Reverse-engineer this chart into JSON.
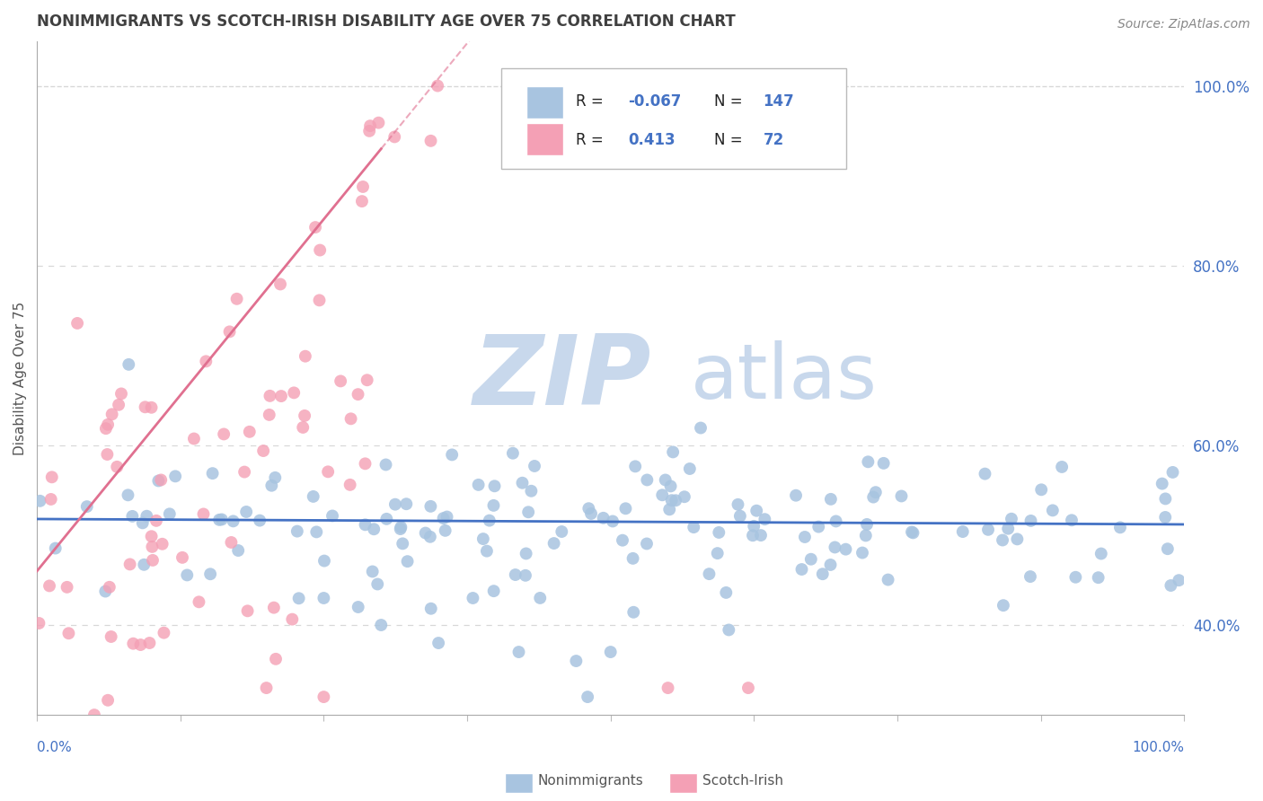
{
  "title": "NONIMMIGRANTS VS SCOTCH-IRISH DISABILITY AGE OVER 75 CORRELATION CHART",
  "source_text": "Source: ZipAtlas.com",
  "ylabel": "Disability Age Over 75",
  "nonimmigrant_R": -0.067,
  "nonimmigrant_N": 147,
  "scotchirish_R": 0.413,
  "scotchirish_N": 72,
  "blue_color": "#a8c4e0",
  "pink_color": "#f4a0b5",
  "blue_line_color": "#4472c4",
  "pink_line_color": "#e07090",
  "watermark_zip": "ZIP",
  "watermark_atlas": "atlas",
  "watermark_color": "#c8d8ec",
  "background_color": "#ffffff",
  "grid_color": "#d8d8d8",
  "title_color": "#404040",
  "axis_label_color": "#4472c4",
  "ylim_low": 0.3,
  "ylim_high": 1.05,
  "xlim_low": 0.0,
  "xlim_high": 1.0,
  "y_ticks": [
    0.4,
    0.6,
    0.8,
    1.0
  ],
  "y_tick_labels": [
    "40.0%",
    "60.0%",
    "80.0%",
    "100.0%"
  ],
  "legend_R1": "R = -0.067",
  "legend_N1": "N = 147",
  "legend_R2": "R =  0.413",
  "legend_N2": "N =  72"
}
